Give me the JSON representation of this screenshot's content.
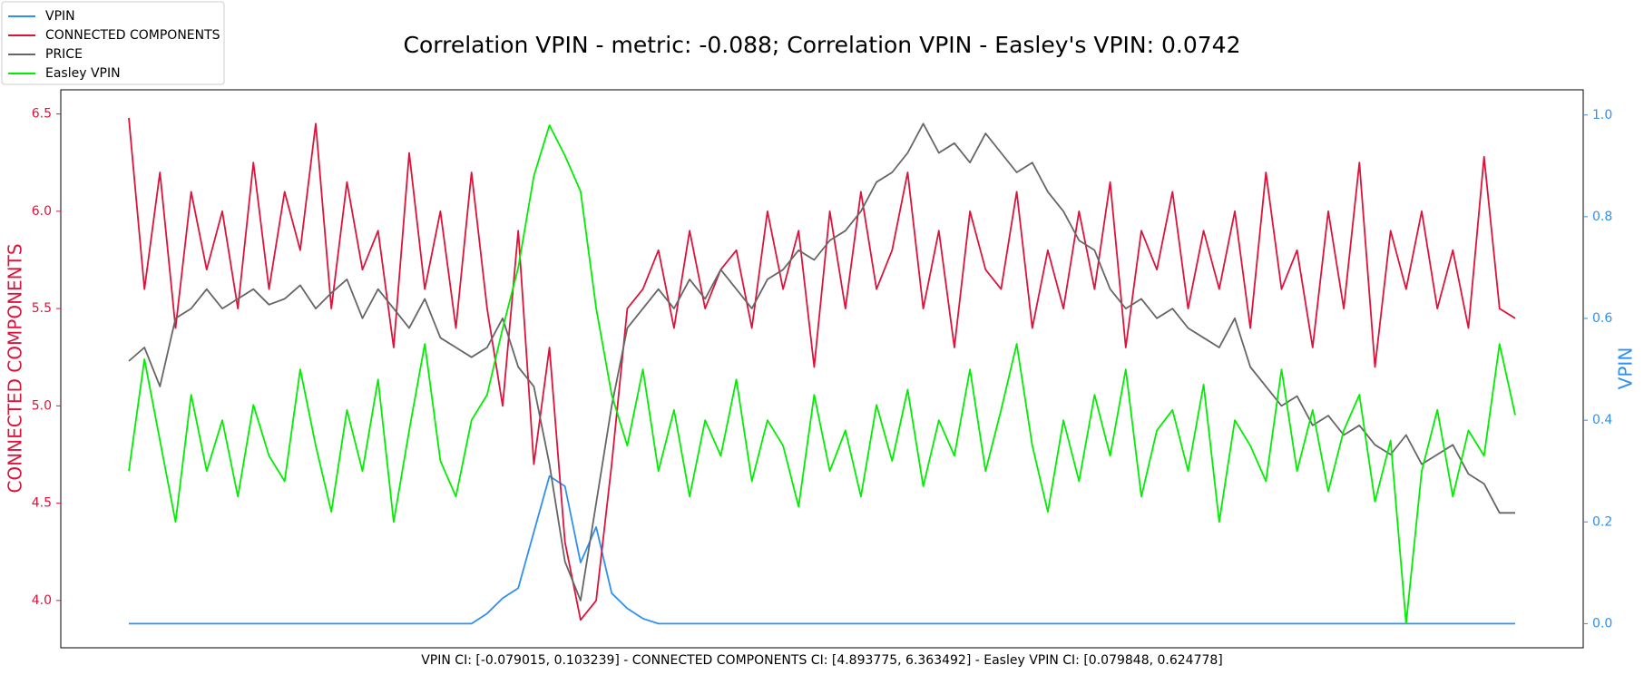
{
  "chart_data": {
    "type": "line",
    "title": "Correlation VPIN - metric: -0.088; Correlation VPIN - Easley's VPIN: 0.0742",
    "xlabel": "VPIN CI: [-0.079015, 0.103239] - CONNECTED COMPONENTS CI: [4.893775, 6.363492] - Easley VPIN CI: [0.079848, 0.624778]",
    "ylabel": "CONNECTED COMPONENTS",
    "y2label": "VPIN",
    "ylabel_color": "#dc143c",
    "y2label_color": "#2e90f0",
    "ylim": [
      3.757,
      6.624
    ],
    "yticks": [
      {
        "value": 4,
        "label": "4.0"
      },
      4.5,
      {
        "value": 5,
        "label": "5.0"
      },
      5.5,
      {
        "value": 6,
        "label": "6.0"
      },
      6.5
    ],
    "y2lim": [
      -0.0474,
      1.0495
    ],
    "y2ticks": [
      {
        "value": 0,
        "label": "0.0"
      },
      0.2,
      0.4,
      0.6,
      0.8,
      {
        "value": 1,
        "label": "1.0"
      }
    ],
    "legend_loc": "upper left",
    "series": [
      {
        "name": "VPIN",
        "color": "#2e90f0",
        "axis": "y2",
        "values": [
          0,
          0,
          0,
          0,
          0,
          0,
          0,
          0,
          0,
          0,
          0,
          0,
          0,
          0,
          0,
          0,
          0,
          0,
          0,
          0,
          0,
          0,
          0,
          0.02,
          0.05,
          0.07,
          0.18,
          0.29,
          0.27,
          0.12,
          0.19,
          0.06,
          0.03,
          0.01,
          0,
          0,
          0,
          0,
          0,
          0,
          0,
          0,
          0,
          0,
          0,
          0,
          0,
          0,
          0,
          0,
          0,
          0,
          0,
          0,
          0,
          0,
          0,
          0,
          0,
          0,
          0,
          0,
          0,
          0,
          0,
          0,
          0,
          0,
          0,
          0,
          0,
          0,
          0,
          0,
          0,
          0,
          0,
          0,
          0,
          0,
          0,
          0,
          0,
          0,
          0,
          0,
          0,
          0,
          0,
          0
        ]
      },
      {
        "name": "CONNECTED COMPONENTS",
        "color": "#dc143c",
        "axis": "y",
        "values": [
          6.48,
          5.6,
          6.2,
          5.4,
          6.1,
          5.7,
          6.0,
          5.5,
          6.25,
          5.6,
          6.1,
          5.8,
          6.45,
          5.5,
          6.15,
          5.7,
          5.9,
          5.3,
          6.3,
          5.6,
          6.0,
          5.4,
          6.2,
          5.5,
          5.0,
          5.9,
          4.7,
          5.3,
          4.3,
          3.9,
          4.0,
          4.7,
          5.5,
          5.6,
          5.8,
          5.4,
          5.9,
          5.5,
          5.7,
          5.8,
          5.4,
          6.0,
          5.6,
          5.9,
          5.2,
          6.0,
          5.5,
          6.1,
          5.6,
          5.8,
          6.2,
          5.5,
          5.9,
          5.3,
          6.0,
          5.7,
          5.6,
          6.1,
          5.4,
          5.8,
          5.5,
          6.0,
          5.6,
          6.15,
          5.3,
          5.9,
          5.7,
          6.1,
          5.5,
          5.9,
          5.6,
          6.0,
          5.4,
          6.2,
          5.6,
          5.8,
          5.3,
          6.0,
          5.5,
          6.25,
          5.2,
          5.9,
          5.6,
          6.0,
          5.5,
          5.8,
          5.4,
          6.28,
          5.5,
          5.45
        ]
      },
      {
        "name": "PRICE",
        "color": "#666666",
        "axis": "y",
        "values": [
          5.23,
          5.3,
          5.1,
          5.45,
          5.5,
          5.6,
          5.5,
          5.55,
          5.6,
          5.52,
          5.55,
          5.62,
          5.5,
          5.58,
          5.65,
          5.45,
          5.6,
          5.5,
          5.4,
          5.55,
          5.35,
          5.3,
          5.25,
          5.3,
          5.45,
          5.2,
          5.1,
          4.7,
          4.2,
          4.0,
          4.5,
          5.0,
          5.4,
          5.5,
          5.6,
          5.5,
          5.65,
          5.55,
          5.7,
          5.6,
          5.5,
          5.65,
          5.7,
          5.8,
          5.75,
          5.85,
          5.9,
          6.0,
          6.15,
          6.2,
          6.3,
          6.45,
          6.3,
          6.35,
          6.25,
          6.4,
          6.3,
          6.2,
          6.25,
          6.1,
          6.0,
          5.85,
          5.8,
          5.6,
          5.5,
          5.55,
          5.45,
          5.5,
          5.4,
          5.35,
          5.3,
          5.45,
          5.2,
          5.1,
          5.0,
          5.05,
          4.9,
          4.95,
          4.85,
          4.9,
          4.8,
          4.75,
          4.85,
          4.7,
          4.75,
          4.8,
          4.65,
          4.6,
          4.45,
          4.45
        ]
      },
      {
        "name": "Easley VPIN",
        "color": "#00ee00",
        "axis": "y2",
        "values": [
          0.3,
          0.52,
          0.36,
          0.2,
          0.45,
          0.3,
          0.4,
          0.25,
          0.43,
          0.33,
          0.28,
          0.5,
          0.35,
          0.22,
          0.42,
          0.3,
          0.48,
          0.2,
          0.38,
          0.55,
          0.32,
          0.25,
          0.4,
          0.45,
          0.58,
          0.7,
          0.88,
          0.98,
          0.92,
          0.85,
          0.62,
          0.45,
          0.35,
          0.5,
          0.3,
          0.42,
          0.25,
          0.4,
          0.33,
          0.48,
          0.28,
          0.4,
          0.35,
          0.23,
          0.45,
          0.3,
          0.38,
          0.25,
          0.43,
          0.32,
          0.46,
          0.27,
          0.4,
          0.33,
          0.5,
          0.3,
          0.42,
          0.55,
          0.35,
          0.22,
          0.4,
          0.28,
          0.45,
          0.33,
          0.5,
          0.25,
          0.38,
          0.42,
          0.3,
          0.47,
          0.2,
          0.4,
          0.35,
          0.28,
          0.5,
          0.3,
          0.42,
          0.26,
          0.38,
          0.45,
          0.24,
          0.36,
          0.0,
          0.3,
          0.42,
          0.25,
          0.38,
          0.33,
          0.55,
          0.41
        ]
      }
    ]
  }
}
